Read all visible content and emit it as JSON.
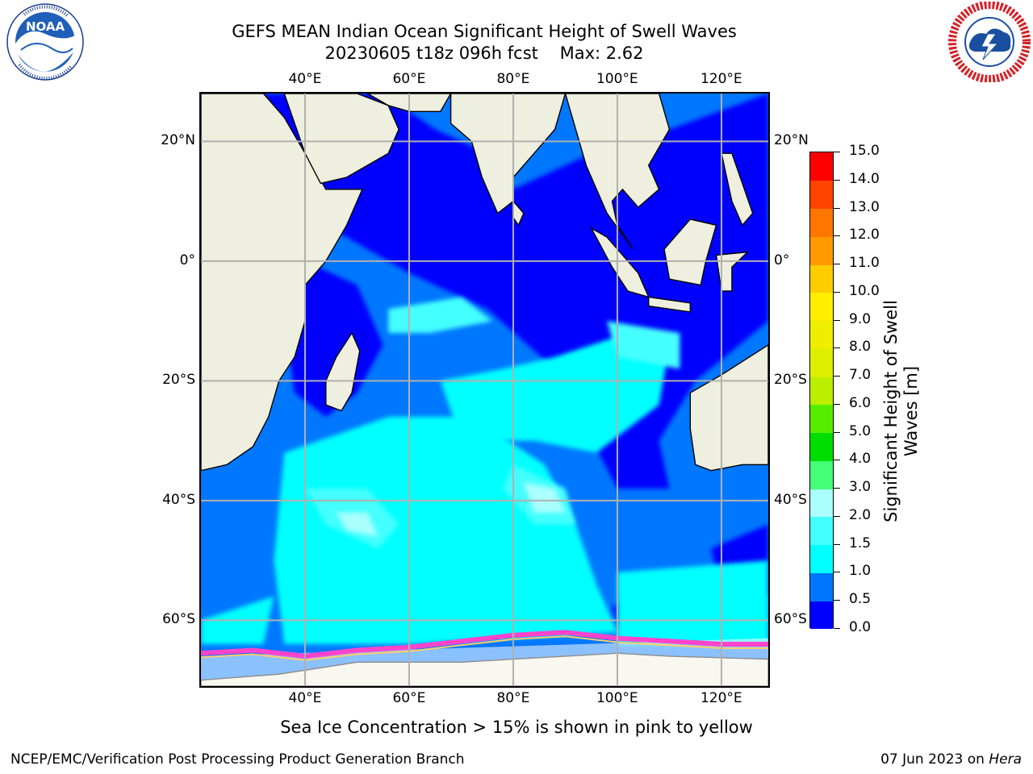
{
  "header": {
    "title_line1": "GEFS MEAN Indian Ocean Significant Height of Swell Waves",
    "title_line2": "20230605 t18z 096h fcst    Max: 2.62"
  },
  "logos": {
    "left": {
      "icon": "noaa-logo",
      "text": "NOAA",
      "ring_text": "NATIONAL OCEANIC AND ATMOSPHERIC ADMINISTRATION · U.S. DEPARTMENT OF COMMERCE"
    },
    "right": {
      "icon": "nws-logo",
      "ring_text": "NATIONAL WEATHER SERVICE"
    }
  },
  "map": {
    "lon_labels": [
      "40°E",
      "60°E",
      "80°E",
      "100°E",
      "120°E"
    ],
    "lon_values": [
      40,
      60,
      80,
      100,
      120
    ],
    "lat_labels": [
      "20°N",
      "0°",
      "20°S",
      "40°S",
      "60°S"
    ],
    "lat_values": [
      20,
      0,
      -20,
      -40,
      -60
    ],
    "extent": {
      "lon": [
        20,
        129
      ],
      "lat": [
        -71,
        28
      ]
    },
    "colors": {
      "land": "#efefe0",
      "ocean_low": "#0000ff",
      "gridline": "#b0b0b0",
      "coastline": "#000000"
    }
  },
  "colorbar": {
    "title_line1": "Significant Height of Swell",
    "title_line2": "Waves [m]",
    "tick_labels": [
      "0.0",
      "0.5",
      "1.0",
      "1.5",
      "2.0",
      "3.0",
      "4.0",
      "5.0",
      "6.0",
      "7.0",
      "8.0",
      "9.0",
      "10.0",
      "11.0",
      "12.0",
      "13.0",
      "14.0",
      "15.0"
    ],
    "bins": [
      {
        "from": 0.0,
        "to": 0.5,
        "color": "#0000ff"
      },
      {
        "from": 0.5,
        "to": 1.0,
        "color": "#0077ff"
      },
      {
        "from": 1.0,
        "to": 1.5,
        "color": "#00ffff"
      },
      {
        "from": 1.5,
        "to": 2.0,
        "color": "#44ffff"
      },
      {
        "from": 2.0,
        "to": 3.0,
        "color": "#aaffff"
      },
      {
        "from": 3.0,
        "to": 4.0,
        "color": "#44ff77"
      },
      {
        "from": 4.0,
        "to": 5.0,
        "color": "#00dd00"
      },
      {
        "from": 5.0,
        "to": 6.0,
        "color": "#55ee00"
      },
      {
        "from": 6.0,
        "to": 7.0,
        "color": "#bbee00"
      },
      {
        "from": 7.0,
        "to": 8.0,
        "color": "#ddee00"
      },
      {
        "from": 8.0,
        "to": 9.0,
        "color": "#eeee00"
      },
      {
        "from": 9.0,
        "to": 10.0,
        "color": "#ffee00"
      },
      {
        "from": 10.0,
        "to": 11.0,
        "color": "#ffcc00"
      },
      {
        "from": 11.0,
        "to": 12.0,
        "color": "#ff9900"
      },
      {
        "from": 12.0,
        "to": 13.0,
        "color": "#ff7700"
      },
      {
        "from": 13.0,
        "to": 14.0,
        "color": "#ff4400"
      },
      {
        "from": 14.0,
        "to": 15.0,
        "color": "#ff0000"
      }
    ]
  },
  "footnote": "Sea Ice Concentration > 15% is shown in pink to yellow",
  "credits": {
    "left": "NCEP/EMC/Verification Post Processing Product Generation Branch",
    "right_date": "07 Jun 2023 on",
    "right_host": "Hera"
  }
}
